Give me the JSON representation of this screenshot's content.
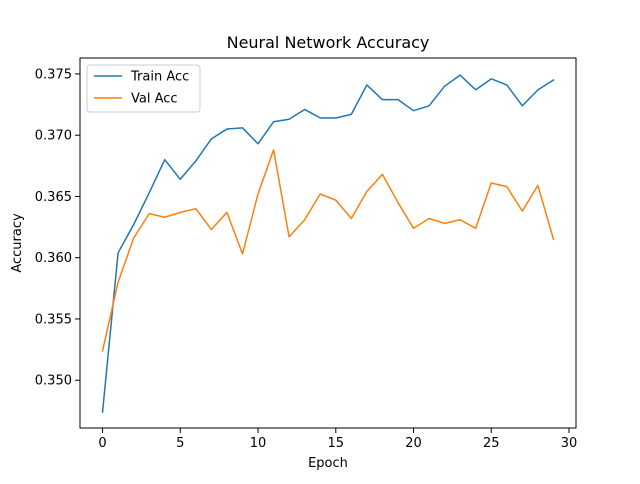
{
  "chart_data": {
    "type": "line",
    "title": "Neural Network Accuracy",
    "xlabel": "Epoch",
    "ylabel": "Accuracy",
    "xlim": [
      -1.45,
      30.45
    ],
    "ylim": [
      0.3461,
      0.3763
    ],
    "xticks": [
      0,
      5,
      10,
      15,
      20,
      25,
      30
    ],
    "yticks": [
      0.35,
      0.355,
      0.36,
      0.365,
      0.37,
      0.375
    ],
    "xtick_labels": [
      "0",
      "5",
      "10",
      "15",
      "20",
      "25",
      "30"
    ],
    "ytick_labels": [
      "0.350",
      "0.355",
      "0.360",
      "0.365",
      "0.370",
      "0.375"
    ],
    "grid": false,
    "legend_position": "upper-left",
    "x": [
      0,
      1,
      2,
      3,
      4,
      5,
      6,
      7,
      8,
      9,
      10,
      11,
      12,
      13,
      14,
      15,
      16,
      17,
      18,
      19,
      20,
      21,
      22,
      23,
      24,
      25,
      26,
      27,
      28,
      29
    ],
    "series": [
      {
        "name": "Train Acc",
        "color": "#1f77b4",
        "values": [
          0.3474,
          0.3604,
          0.3627,
          0.3653,
          0.368,
          0.3664,
          0.3679,
          0.3697,
          0.3705,
          0.3706,
          0.3693,
          0.3711,
          0.3713,
          0.3721,
          0.3714,
          0.3714,
          0.3717,
          0.3741,
          0.3729,
          0.3729,
          0.372,
          0.3724,
          0.374,
          0.3749,
          0.3737,
          0.3746,
          0.3741,
          0.3724,
          0.3737,
          0.3745
        ]
      },
      {
        "name": "Val Acc",
        "color": "#ff7f0e",
        "values": [
          0.3524,
          0.358,
          0.3616,
          0.3636,
          0.3633,
          0.3637,
          0.364,
          0.3623,
          0.3637,
          0.3603,
          0.3652,
          0.3688,
          0.3617,
          0.3631,
          0.3652,
          0.3647,
          0.3632,
          0.3654,
          0.3668,
          0.3645,
          0.3624,
          0.3632,
          0.3628,
          0.3631,
          0.3624,
          0.3661,
          0.3658,
          0.3638,
          0.3659,
          0.3615
        ]
      }
    ]
  }
}
